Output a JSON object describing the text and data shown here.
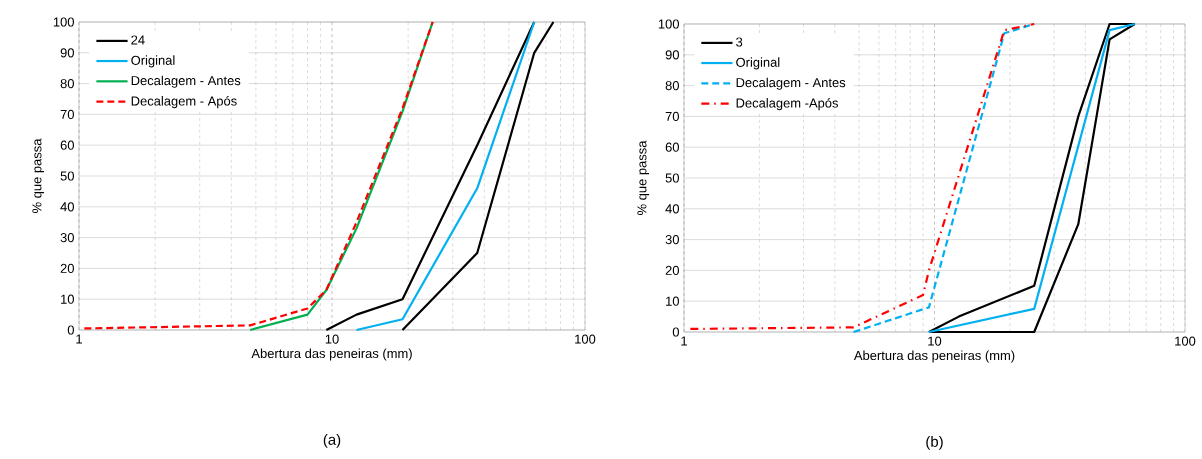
{
  "chart_data": [
    {
      "type": "line",
      "title": "(a)",
      "xlabel": "Abertura das peneiras (mm)",
      "ylabel": "% que passa",
      "log": "x",
      "xlim": [
        1,
        100
      ],
      "xticks": [
        1,
        10,
        100
      ],
      "ylim": [
        0,
        100
      ],
      "yticks": [
        0,
        10,
        20,
        30,
        40,
        50,
        60,
        70,
        80,
        90,
        100
      ],
      "grid": true,
      "legend": "top left",
      "marker": "none",
      "series": [
        {
          "name": "24",
          "color": "#000000",
          "line_style": "solid",
          "x": [
            9.5,
            12.5,
            19,
            37.5,
            63
          ],
          "values": [
            0,
            5,
            10,
            60,
            100
          ]
        },
        {
          "color": "#000000",
          "line_style": "solid",
          "x": [
            19,
            37.5,
            63,
            75
          ],
          "values": [
            0,
            25,
            90,
            100
          ]
        },
        {
          "name": "Original",
          "color": "#00b0f0",
          "line_style": "solid",
          "x": [
            12.5,
            19,
            37.5,
            63
          ],
          "values": [
            0,
            3.5,
            46,
            100
          ]
        },
        {
          "name": "Decalagem - Antes",
          "color": "#00b050",
          "line_style": "solid",
          "x": [
            4.75,
            8,
            9.5,
            12.5,
            19,
            25
          ],
          "values": [
            0,
            5,
            13,
            33,
            71,
            100
          ]
        },
        {
          "name": "Decalagem - Após",
          "color": "#ff0000",
          "line_style": "dashed",
          "x": [
            1.05,
            4.75,
            8,
            9.5,
            12.5,
            19,
            25
          ],
          "values": [
            0.5,
            1.5,
            7,
            13,
            35,
            72,
            100
          ]
        }
      ]
    },
    {
      "type": "line",
      "title": "(b)",
      "xlabel": "Abertura das peneiras (mm)",
      "ylabel": "% que passa",
      "log": "x",
      "xlim": [
        1,
        100
      ],
      "xticks": [
        1,
        10,
        100
      ],
      "ylim": [
        0,
        100
      ],
      "yticks": [
        0,
        10,
        20,
        30,
        40,
        50,
        60,
        70,
        80,
        90,
        100
      ],
      "grid": true,
      "legend": "top left",
      "marker": "none",
      "series": [
        {
          "name": "3",
          "color": "#000000",
          "line_style": "solid",
          "x": [
            9.5,
            12.5,
            25,
            37.5,
            50,
            63
          ],
          "values": [
            0,
            5,
            15,
            70,
            100,
            100
          ]
        },
        {
          "color": "#000000",
          "line_style": "solid",
          "x": [
            9.5,
            25,
            37.5,
            50,
            63
          ],
          "values": [
            0,
            0,
            35,
            95,
            100
          ]
        },
        {
          "name": "Original",
          "color": "#00b0f0",
          "line_style": "solid",
          "x": [
            9.5,
            25,
            50,
            63
          ],
          "values": [
            0,
            7.5,
            98,
            100
          ]
        },
        {
          "name": "Decalagem - Antes",
          "color": "#00b0f0",
          "line_style": "dashed",
          "x": [
            4.75,
            9.5,
            19,
            25
          ],
          "values": [
            0,
            8,
            97,
            100
          ]
        },
        {
          "name": "Decalagem -Após",
          "color": "#ff0000",
          "line_style": "dashdot",
          "x": [
            1.06,
            4.75,
            9,
            9.5,
            19,
            25
          ],
          "values": [
            1,
            1.5,
            12,
            20,
            98,
            100
          ]
        }
      ]
    }
  ]
}
